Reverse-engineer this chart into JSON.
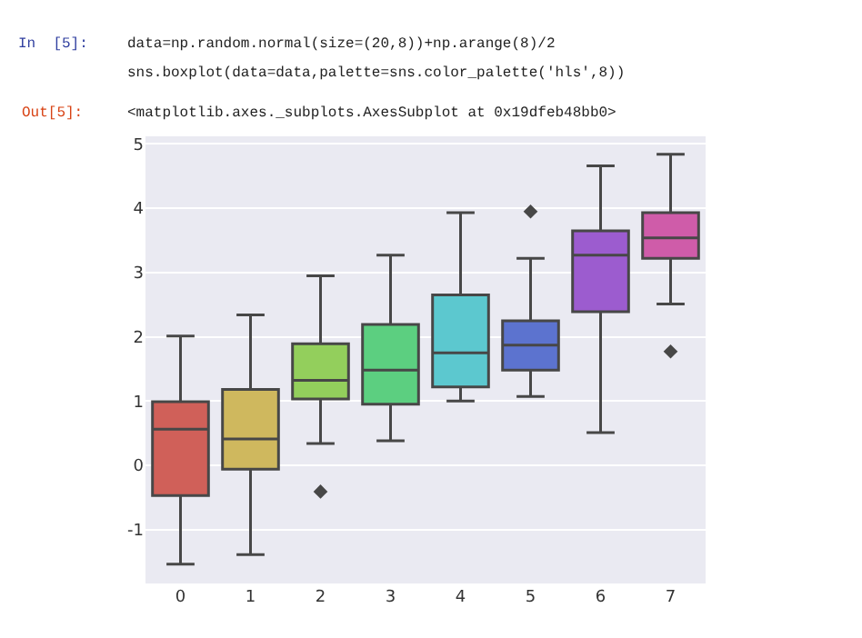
{
  "chart_data": {
    "type": "box",
    "categories": [
      "0",
      "1",
      "2",
      "3",
      "4",
      "5",
      "6",
      "7"
    ],
    "colors": [
      "#d06059",
      "#cfb85e",
      "#93cf5c",
      "#5ccf80",
      "#5cc8cf",
      "#5c73cf",
      "#9c5ccf",
      "#cf5ca9"
    ],
    "boxes": [
      {
        "low": -1.54,
        "q1": -0.47,
        "median": 0.56,
        "q3": 0.99,
        "high": 2.01
      },
      {
        "low": -1.39,
        "q1": -0.06,
        "median": 0.41,
        "q3": 1.18,
        "high": 2.34
      },
      {
        "low": 0.34,
        "q1": 1.03,
        "median": 1.32,
        "q3": 1.89,
        "high": 2.95,
        "outliers": [
          -0.41
        ]
      },
      {
        "low": 0.38,
        "q1": 0.95,
        "median": 1.48,
        "q3": 2.19,
        "high": 3.27
      },
      {
        "low": 1.0,
        "q1": 1.22,
        "median": 1.75,
        "q3": 2.65,
        "high": 3.93
      },
      {
        "low": 1.07,
        "q1": 1.48,
        "median": 1.87,
        "q3": 2.25,
        "high": 3.22,
        "outliers": [
          3.95
        ]
      },
      {
        "low": 0.51,
        "q1": 2.39,
        "median": 3.27,
        "q3": 3.65,
        "high": 4.66
      },
      {
        "low": 2.51,
        "q1": 3.22,
        "median": 3.54,
        "q3": 3.93,
        "high": 4.84,
        "outliers": [
          1.77
        ]
      }
    ],
    "ylim": [
      -1.84,
      5.12
    ],
    "yticks": [
      -1,
      0,
      1,
      2,
      3,
      4,
      5
    ],
    "grid": "y",
    "annotations": [
      "In  [5]:",
      "data=np.random.normal(size=(20,8))+np.arange(8)/2",
      "sns.boxplot(data=data,palette=sns.color_palette('hls',8))",
      "Out[5]:",
      "<matplotlib.axes._subplots.AxesSubplot at 0x19dfeb48bb0>"
    ]
  }
}
